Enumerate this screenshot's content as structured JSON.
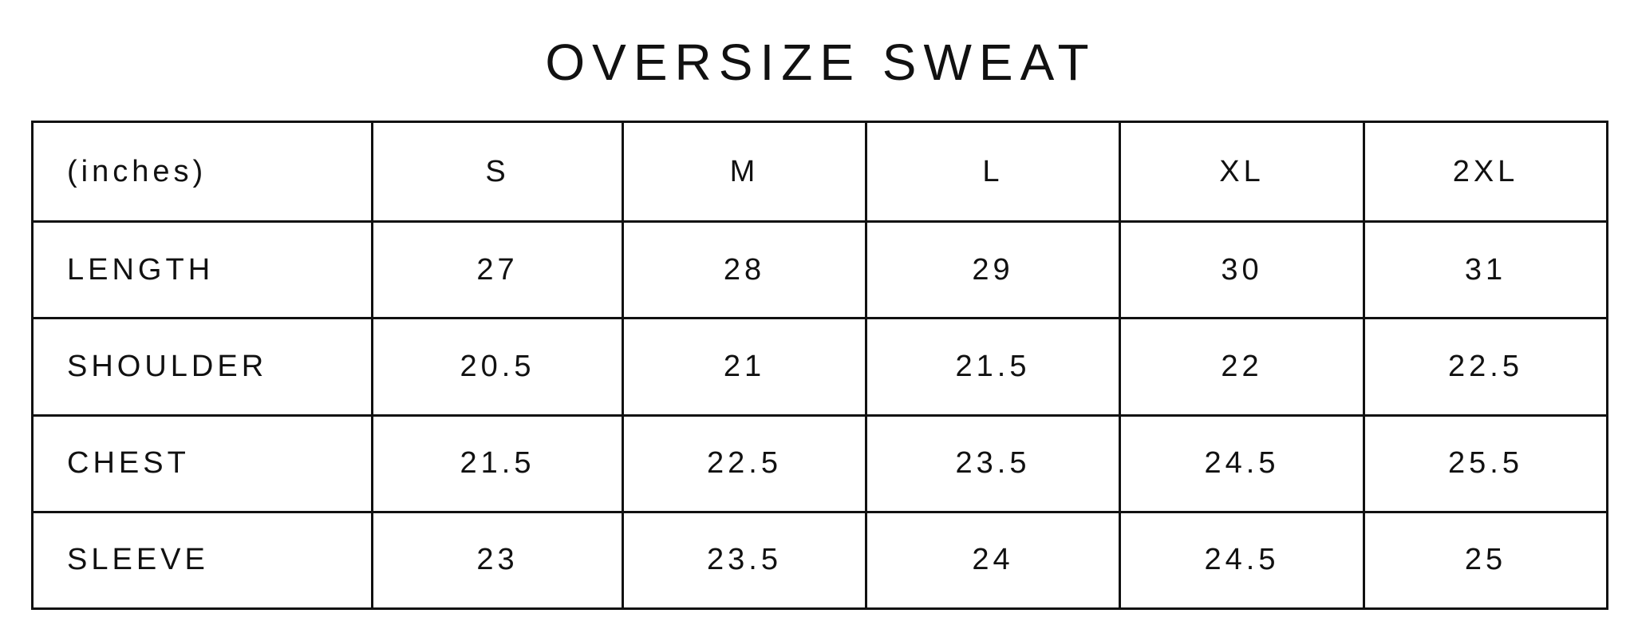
{
  "title": "OVERSIZE SWEAT",
  "table": {
    "unit_label": "(inches)",
    "sizes": [
      "S",
      "M",
      "L",
      "XL",
      "2XL"
    ],
    "rows": [
      {
        "label": "LENGTH",
        "values": [
          "27",
          "28",
          "29",
          "30",
          "31"
        ]
      },
      {
        "label": "SHOULDER",
        "values": [
          "20.5",
          "21",
          "21.5",
          "22",
          "22.5"
        ]
      },
      {
        "label": "CHEST",
        "values": [
          "21.5",
          "22.5",
          "23.5",
          "24.5",
          "25.5"
        ]
      },
      {
        "label": "SLEEVE",
        "values": [
          "23",
          "23.5",
          "24",
          "24.5",
          "25"
        ]
      }
    ]
  },
  "colors": {
    "text": "#111111",
    "border": "#111111",
    "background": "#ffffff"
  }
}
